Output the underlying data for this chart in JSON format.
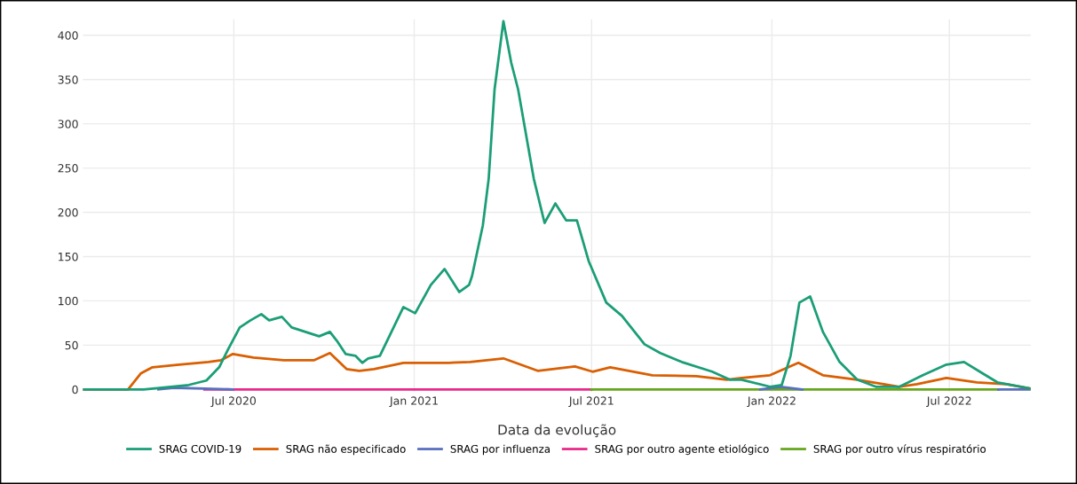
{
  "chart_data": {
    "type": "line",
    "xlabel": "Data da evolução",
    "xlim": [
      "2020-01-29",
      "2022-09-22"
    ],
    "ylim": [
      -3,
      418
    ],
    "xticks": [
      {
        "value": "2020-07-01",
        "label": "Jul 2020"
      },
      {
        "value": "2021-01-01",
        "label": "Jan 2021"
      },
      {
        "value": "2021-07-01",
        "label": "Jul 2021"
      },
      {
        "value": "2022-01-01",
        "label": "Jan 2022"
      },
      {
        "value": "2022-07-01",
        "label": "Jul 2022"
      }
    ],
    "yticks": [
      0,
      50,
      100,
      150,
      200,
      250,
      300,
      350,
      400
    ],
    "grid": true,
    "legend": "bottom",
    "marker": "none",
    "line_style": "solid",
    "series": [
      {
        "name": "SRAG COVID-19",
        "color": "#1b9e77",
        "x": [
          "2020-01-29",
          "2020-03-31",
          "2020-05-16",
          "2020-06-03",
          "2020-06-16",
          "2020-06-25",
          "2020-07-07",
          "2020-07-18",
          "2020-07-29",
          "2020-08-06",
          "2020-08-19",
          "2020-08-29",
          "2020-09-12",
          "2020-09-26",
          "2020-10-07",
          "2020-10-14",
          "2020-10-23",
          "2020-11-02",
          "2020-11-09",
          "2020-11-15",
          "2020-11-27",
          "2020-12-21",
          "2021-01-02",
          "2021-01-18",
          "2021-02-01",
          "2021-02-16",
          "2021-02-26",
          "2021-03-01",
          "2021-03-12",
          "2021-03-18",
          "2021-03-24",
          "2021-04-02",
          "2021-04-10",
          "2021-04-17",
          "2021-05-03",
          "2021-05-14",
          "2021-05-25",
          "2021-06-05",
          "2021-06-16",
          "2021-06-28",
          "2021-07-16",
          "2021-08-01",
          "2021-08-24",
          "2021-09-09",
          "2021-10-01",
          "2021-11-01",
          "2021-11-19",
          "2021-12-01",
          "2021-12-30",
          "2022-01-11",
          "2022-01-20",
          "2022-01-29",
          "2022-02-09",
          "2022-02-22",
          "2022-03-11",
          "2022-03-29",
          "2022-04-17",
          "2022-05-11",
          "2022-06-04",
          "2022-06-28",
          "2022-07-16",
          "2022-08-04",
          "2022-08-19",
          "2022-09-22"
        ],
        "values": [
          0,
          0,
          5,
          10,
          25,
          45,
          70,
          78,
          85,
          78,
          82,
          70,
          65,
          60,
          65,
          55,
          40,
          38,
          30,
          35,
          38,
          93,
          86,
          118,
          136,
          110,
          118,
          128,
          185,
          238,
          339,
          416,
          369,
          339,
          238,
          188,
          210,
          191,
          191,
          145,
          98,
          83,
          51,
          41,
          31,
          20,
          11,
          11,
          3,
          5,
          38,
          98,
          105,
          65,
          31,
          11,
          3,
          3,
          16,
          28,
          31,
          18,
          8,
          1
        ]
      },
      {
        "name": "SRAG não especificado",
        "color": "#d95f02",
        "x": [
          "2020-01-29",
          "2020-03-15",
          "2020-03-28",
          "2020-04-09",
          "2020-05-06",
          "2020-06-05",
          "2020-06-18",
          "2020-06-30",
          "2020-07-21",
          "2020-08-21",
          "2020-09-21",
          "2020-10-07",
          "2020-10-24",
          "2020-11-06",
          "2020-11-21",
          "2020-12-21",
          "2021-02-05",
          "2021-02-27",
          "2021-04-02",
          "2021-05-07",
          "2021-06-14",
          "2021-07-02",
          "2021-07-20",
          "2021-09-01",
          "2021-10-16",
          "2021-11-16",
          "2021-12-01",
          "2021-12-30",
          "2022-01-28",
          "2022-02-22",
          "2022-03-29",
          "2022-05-11",
          "2022-05-29",
          "2022-06-28",
          "2022-07-29",
          "2022-08-28",
          "2022-09-22"
        ],
        "values": [
          0,
          0,
          18,
          25,
          28,
          31,
          33,
          40,
          36,
          33,
          33,
          41,
          23,
          21,
          23,
          30,
          30,
          31,
          35,
          21,
          26,
          20,
          25,
          16,
          15,
          11,
          13,
          16,
          30,
          16,
          11,
          3,
          6,
          13,
          8,
          6,
          1
        ]
      },
      {
        "name": "SRAG por influenza",
        "color": "#5a6fbf",
        "x": [
          "2020-04-15",
          "2020-05-01",
          "2020-06-01",
          "2020-06-30",
          "2021-01-01",
          "2021-12-20",
          "2022-01-10",
          "2022-02-01",
          "2022-05-01",
          "2022-08-20",
          "2022-09-22"
        ],
        "values": [
          0,
          2,
          1,
          0,
          null,
          0,
          3,
          0,
          null,
          0,
          0
        ]
      },
      {
        "name": "SRAG por outro agente etiológico",
        "color": "#e7298a",
        "x": [
          "2020-06-01",
          "2021-07-01"
        ],
        "values": [
          0,
          0
        ]
      },
      {
        "name": "SRAG por outro vírus respiratório",
        "color": "#66a61e",
        "x": [
          "2021-07-01",
          "2022-08-20"
        ],
        "values": [
          0,
          0
        ]
      }
    ]
  }
}
